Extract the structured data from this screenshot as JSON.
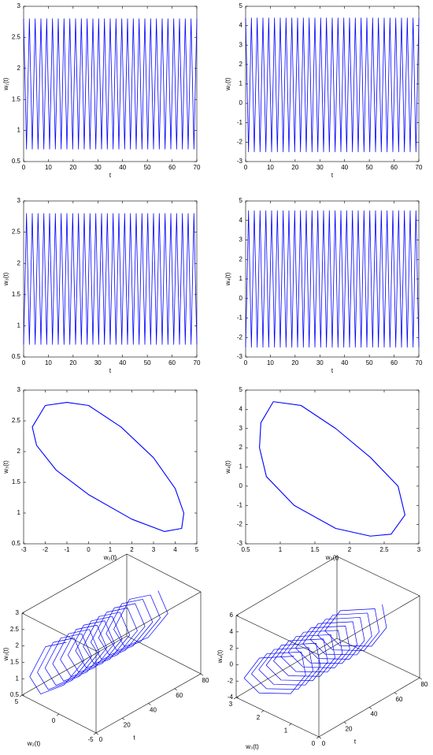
{
  "chart_data": [
    {
      "type": "line",
      "xlabel": "t",
      "ylabel": "w₁(t)",
      "color": "#0000ff",
      "xlim": [
        0,
        70
      ],
      "xticks": [
        0,
        10,
        20,
        30,
        40,
        50,
        60,
        70
      ],
      "ylim": [
        0.5,
        3
      ],
      "yticks": [
        0.5,
        1,
        1.5,
        2,
        2.5,
        3
      ],
      "x": [
        0,
        1.17,
        2.33,
        3.5,
        4.67,
        5.83,
        7,
        8.17,
        9.33,
        10.5,
        11.67,
        12.83,
        14,
        15.17,
        16.33,
        17.5,
        18.67,
        19.83,
        21,
        22.17,
        23.33,
        24.5,
        25.67,
        26.83,
        28,
        29.17,
        30.33,
        31.5,
        32.67,
        33.83,
        35,
        36.17,
        37.33,
        38.5,
        39.67,
        40.83,
        42,
        43.17,
        44.33,
        45.5,
        46.67,
        47.83,
        49,
        50.17,
        51.33,
        52.5,
        53.67,
        54.83,
        56,
        57.17,
        58.33,
        59.5,
        60.67,
        61.83,
        63,
        64.17,
        65.33,
        66.5,
        67.67,
        68.83,
        70
      ],
      "values": [
        2.8,
        0.7,
        2.8,
        0.7,
        2.8,
        0.7,
        2.8,
        0.7,
        2.8,
        0.7,
        2.8,
        0.7,
        2.8,
        0.7,
        2.8,
        0.7,
        2.8,
        0.7,
        2.8,
        0.7,
        2.8,
        0.7,
        2.8,
        0.7,
        2.8,
        0.7,
        2.8,
        0.7,
        2.8,
        0.7,
        2.8,
        0.7,
        2.8,
        0.7,
        2.8,
        0.7,
        2.8,
        0.7,
        2.8,
        0.7,
        2.8,
        0.7,
        2.8,
        0.7,
        2.8,
        0.7,
        2.8,
        0.7,
        2.8,
        0.7,
        2.8,
        0.7,
        2.8,
        0.7,
        2.8,
        0.7,
        2.8,
        0.7,
        2.8,
        0.7,
        2.8
      ]
    },
    {
      "type": "line",
      "xlabel": "t",
      "ylabel": "w₂(t)",
      "color": "#0000ff",
      "xlim": [
        0,
        70
      ],
      "xticks": [
        0,
        10,
        20,
        30,
        40,
        50,
        60,
        70
      ],
      "ylim": [
        -3,
        5
      ],
      "yticks": [
        -3,
        -2,
        -1,
        0,
        1,
        2,
        3,
        4,
        5
      ],
      "x": [
        0,
        1.17,
        2.33,
        3.5,
        4.67,
        5.83,
        7,
        8.17,
        9.33,
        10.5,
        11.67,
        12.83,
        14,
        15.17,
        16.33,
        17.5,
        18.67,
        19.83,
        21,
        22.17,
        23.33,
        24.5,
        25.67,
        26.83,
        28,
        29.17,
        30.33,
        31.5,
        32.67,
        33.83,
        35,
        36.17,
        37.33,
        38.5,
        39.67,
        40.83,
        42,
        43.17,
        44.33,
        45.5,
        46.67,
        47.83,
        49,
        50.17,
        51.33,
        52.5,
        53.67,
        54.83,
        56,
        57.17,
        58.33,
        59.5,
        60.67,
        61.83,
        63,
        64.17,
        65.33,
        66.5,
        67.67,
        68.83,
        70
      ],
      "values": [
        4.4,
        -2.5,
        4.4,
        -2.5,
        4.4,
        -2.5,
        4.4,
        -2.5,
        4.4,
        -2.5,
        4.4,
        -2.5,
        4.4,
        -2.5,
        4.4,
        -2.5,
        4.4,
        -2.5,
        4.4,
        -2.5,
        4.4,
        -2.5,
        4.4,
        -2.5,
        4.4,
        -2.5,
        4.4,
        -2.5,
        4.4,
        -2.5,
        4.4,
        -2.5,
        4.4,
        -2.5,
        4.4,
        -2.5,
        4.4,
        -2.5,
        4.4,
        -2.5,
        4.4,
        -2.5,
        4.4,
        -2.5,
        4.4,
        -2.5,
        4.4,
        -2.5,
        4.4,
        -2.5,
        4.4,
        -2.5,
        4.4,
        -2.5,
        4.4,
        -2.5,
        4.4,
        -2.5,
        4.4,
        -2.5,
        4.4
      ]
    },
    {
      "type": "line",
      "xlabel": "t",
      "ylabel": "w₃(t)",
      "color": "#0000ff",
      "xlim": [
        0,
        70
      ],
      "xticks": [
        0,
        10,
        20,
        30,
        40,
        50,
        60,
        70
      ],
      "ylim": [
        0.5,
        3
      ],
      "yticks": [
        0.5,
        1,
        1.5,
        2,
        2.5,
        3
      ],
      "x": [
        0,
        1.17,
        2.33,
        3.5,
        4.67,
        5.83,
        7,
        8.17,
        9.33,
        10.5,
        11.67,
        12.83,
        14,
        15.17,
        16.33,
        17.5,
        18.67,
        19.83,
        21,
        22.17,
        23.33,
        24.5,
        25.67,
        26.83,
        28,
        29.17,
        30.33,
        31.5,
        32.67,
        33.83,
        35,
        36.17,
        37.33,
        38.5,
        39.67,
        40.83,
        42,
        43.17,
        44.33,
        45.5,
        46.67,
        47.83,
        49,
        50.17,
        51.33,
        52.5,
        53.67,
        54.83,
        56,
        57.17,
        58.33,
        59.5,
        60.67,
        61.83,
        63,
        64.17,
        65.33,
        66.5,
        67.67,
        68.83,
        70
      ],
      "values": [
        0.7,
        2.8,
        0.7,
        2.8,
        0.7,
        2.8,
        0.7,
        2.8,
        0.7,
        2.8,
        0.7,
        2.8,
        0.7,
        2.8,
        0.7,
        2.8,
        0.7,
        2.8,
        0.7,
        2.8,
        0.7,
        2.8,
        0.7,
        2.8,
        0.7,
        2.8,
        0.7,
        2.8,
        0.7,
        2.8,
        0.7,
        2.8,
        0.7,
        2.8,
        0.7,
        2.8,
        0.7,
        2.8,
        0.7,
        2.8,
        0.7,
        2.8,
        0.7,
        2.8,
        0.7,
        2.8,
        0.7,
        2.8,
        0.7,
        2.8,
        0.7,
        2.8,
        0.7,
        2.8,
        0.7,
        2.8,
        0.7,
        2.8,
        0.7,
        2.8,
        0.7
      ]
    },
    {
      "type": "line",
      "xlabel": "t",
      "ylabel": "w₄(t)",
      "color": "#0000ff",
      "xlim": [
        0,
        70
      ],
      "xticks": [
        0,
        10,
        20,
        30,
        40,
        50,
        60,
        70
      ],
      "ylim": [
        -3,
        5
      ],
      "yticks": [
        -3,
        -2,
        -1,
        0,
        1,
        2,
        3,
        4,
        5
      ],
      "x": [
        0,
        1.17,
        2.33,
        3.5,
        4.67,
        5.83,
        7,
        8.17,
        9.33,
        10.5,
        11.67,
        12.83,
        14,
        15.17,
        16.33,
        17.5,
        18.67,
        19.83,
        21,
        22.17,
        23.33,
        24.5,
        25.67,
        26.83,
        28,
        29.17,
        30.33,
        31.5,
        32.67,
        33.83,
        35,
        36.17,
        37.33,
        38.5,
        39.67,
        40.83,
        42,
        43.17,
        44.33,
        45.5,
        46.67,
        47.83,
        49,
        50.17,
        51.33,
        52.5,
        53.67,
        54.83,
        56,
        57.17,
        58.33,
        59.5,
        60.67,
        61.83,
        63,
        64.17,
        65.33,
        66.5,
        67.67,
        68.83,
        70
      ],
      "values": [
        -2.5,
        4.5,
        -2.5,
        4.5,
        -2.5,
        4.5,
        -2.5,
        4.5,
        -2.5,
        4.5,
        -2.5,
        4.5,
        -2.5,
        4.5,
        -2.5,
        4.5,
        -2.5,
        4.5,
        -2.5,
        4.5,
        -2.5,
        4.5,
        -2.5,
        4.5,
        -2.5,
        4.5,
        -2.5,
        4.5,
        -2.5,
        4.5,
        -2.5,
        4.5,
        -2.5,
        4.5,
        -2.5,
        4.5,
        -2.5,
        4.5,
        -2.5,
        4.5,
        -2.5,
        4.5,
        -2.5,
        4.5,
        -2.5,
        4.5,
        -2.5,
        4.5,
        -2.5,
        4.5,
        -2.5,
        4.5,
        -2.5,
        4.5,
        -2.5,
        4.5,
        -2.5,
        4.5,
        -2.5,
        4.5,
        -2.5
      ]
    },
    {
      "type": "line",
      "xlabel": "w₂(t)",
      "ylabel": "w₃(t)",
      "color": "#0000ff",
      "xlim": [
        -3,
        5
      ],
      "xticks": [
        -3,
        -2,
        -1,
        0,
        1,
        2,
        3,
        4,
        5
      ],
      "ylim": [
        0.5,
        3
      ],
      "yticks": [
        0.5,
        1,
        1.5,
        2,
        2.5,
        3
      ],
      "x": [
        -1,
        0,
        1.5,
        3,
        4,
        4.4,
        4.3,
        3.5,
        2,
        0,
        -1.5,
        -2.4,
        -2.6,
        -2,
        -1
      ],
      "values": [
        2.8,
        2.75,
        2.4,
        1.9,
        1.4,
        1,
        0.75,
        0.7,
        0.9,
        1.3,
        1.7,
        2.1,
        2.4,
        2.75,
        2.8
      ]
    },
    {
      "type": "line",
      "xlabel": "w₃(t)",
      "ylabel": "w₄(t)",
      "color": "#0000ff",
      "xlim": [
        0.5,
        3
      ],
      "xticks": [
        0.5,
        1,
        1.5,
        2,
        2.5,
        3
      ],
      "ylim": [
        -3,
        5
      ],
      "yticks": [
        -3,
        -2,
        -1,
        0,
        1,
        2,
        3,
        4,
        5
      ],
      "x": [
        0.9,
        1.3,
        1.8,
        2.3,
        2.7,
        2.8,
        2.6,
        2.3,
        1.8,
        1.2,
        0.8,
        0.7,
        0.72,
        0.9
      ],
      "values": [
        4.4,
        4.2,
        3,
        1.5,
        0,
        -1.5,
        -2.5,
        -2.6,
        -2.2,
        -1,
        0.5,
        2,
        3.3,
        4.4
      ]
    },
    {
      "type": "line3d",
      "xlabel": "t",
      "ylabel": "w₂(t)",
      "zlabel": "w₃(t)",
      "color": "#0000ff",
      "xlim": [
        0,
        80
      ],
      "xticks": [
        0,
        20,
        40,
        60,
        80
      ],
      "ylim": [
        -5,
        5
      ],
      "yticks": [
        -5,
        0,
        5
      ],
      "zlim": [
        0.5,
        3
      ],
      "zticks": [
        0.5,
        1,
        1.5,
        2,
        2.5,
        3
      ],
      "x": [
        0,
        0.97,
        1.94,
        2.92,
        3.89,
        4.86,
        5.83,
        6.81,
        7.78,
        8.75,
        9.72,
        10.69,
        11.67,
        12.64,
        13.61,
        14.58,
        15.56,
        16.53,
        17.5,
        18.47,
        19.44,
        20.42,
        21.39,
        22.36,
        23.33,
        24.31,
        25.28,
        26.25,
        27.22,
        28.19,
        29.17,
        30.14,
        31.11,
        32.08,
        33.06,
        34.03,
        35,
        35.97,
        36.94,
        37.92,
        38.89,
        39.86,
        40.83,
        41.81,
        42.78,
        43.75,
        44.72,
        45.69,
        46.67,
        47.64,
        48.61,
        49.58,
        50.56,
        51.53,
        52.5,
        53.47,
        54.44,
        55.42,
        56.39,
        57.36,
        58.33,
        59.31,
        60.28,
        61.25,
        62.22,
        63.19,
        64.17,
        65.14,
        66.11,
        67.08,
        68.06,
        69.03,
        70
      ],
      "y": [
        -1,
        2,
        4.3,
        3,
        0,
        -2.5,
        -1,
        2,
        4.3,
        3,
        0,
        -2.5,
        -1,
        2,
        4.3,
        3,
        0,
        -2.5,
        -1,
        2,
        4.3,
        3,
        0,
        -2.5,
        -1,
        2,
        4.3,
        3,
        0,
        -2.5,
        -1,
        2,
        4.3,
        3,
        0,
        -2.5,
        -1,
        2,
        4.3,
        3,
        0,
        -2.5,
        -1,
        2,
        4.3,
        3,
        0,
        -2.5,
        -1,
        2,
        4.3,
        3,
        0,
        -2.5,
        -1,
        2,
        4.3,
        3,
        0,
        -2.5,
        -1,
        2,
        4.3,
        3,
        0,
        -2.5,
        -1,
        2,
        4.3,
        3,
        0,
        -2.5,
        -1
      ],
      "z": [
        2.8,
        2.3,
        1.1,
        0.7,
        1.3,
        2.3,
        2.8,
        2.3,
        1.1,
        0.7,
        1.3,
        2.3,
        2.8,
        2.3,
        1.1,
        0.7,
        1.3,
        2.3,
        2.8,
        2.3,
        1.1,
        0.7,
        1.3,
        2.3,
        2.8,
        2.3,
        1.1,
        0.7,
        1.3,
        2.3,
        2.8,
        2.3,
        1.1,
        0.7,
        1.3,
        2.3,
        2.8,
        2.3,
        1.1,
        0.7,
        1.3,
        2.3,
        2.8,
        2.3,
        1.1,
        0.7,
        1.3,
        2.3,
        2.8,
        2.3,
        1.1,
        0.7,
        1.3,
        2.3,
        2.8,
        2.3,
        1.1,
        0.7,
        1.3,
        2.3,
        2.8,
        2.3,
        1.1,
        0.7,
        1.3,
        2.3,
        2.8,
        2.3,
        1.1,
        0.7,
        1.3,
        2.3,
        2.8
      ]
    },
    {
      "type": "line3d",
      "xlabel": "t",
      "ylabel": "w₃(t)",
      "zlabel": "w₄(t)",
      "color": "#0000ff",
      "xlim": [
        0,
        80
      ],
      "xticks": [
        0,
        20,
        40,
        60,
        80
      ],
      "ylim": [
        0,
        3
      ],
      "yticks": [
        0,
        1,
        2,
        3
      ],
      "zlim": [
        -4,
        6
      ],
      "zticks": [
        -4,
        -2,
        0,
        2,
        4,
        6
      ],
      "x": [
        0,
        0.97,
        1.94,
        2.92,
        3.89,
        4.86,
        5.83,
        6.81,
        7.78,
        8.75,
        9.72,
        10.69,
        11.67,
        12.64,
        13.61,
        14.58,
        15.56,
        16.53,
        17.5,
        18.47,
        19.44,
        20.42,
        21.39,
        22.36,
        23.33,
        24.31,
        25.28,
        26.25,
        27.22,
        28.19,
        29.17,
        30.14,
        31.11,
        32.08,
        33.06,
        34.03,
        35,
        35.97,
        36.94,
        37.92,
        38.89,
        39.86,
        40.83,
        41.81,
        42.78,
        43.75,
        44.72,
        45.69,
        46.67,
        47.64,
        48.61,
        49.58,
        50.56,
        51.53,
        52.5,
        53.47,
        54.44,
        55.42,
        56.39,
        57.36,
        58.33,
        59.31,
        60.28,
        61.25,
        62.22,
        63.19,
        64.17,
        65.14,
        66.11,
        67.08,
        68.06,
        69.03,
        70
      ],
      "y": [
        0.9,
        2.2,
        2.8,
        2.3,
        1.2,
        0.7,
        0.9,
        2.2,
        2.8,
        2.3,
        1.2,
        0.7,
        0.9,
        2.2,
        2.8,
        2.3,
        1.2,
        0.7,
        0.9,
        2.2,
        2.8,
        2.3,
        1.2,
        0.7,
        0.9,
        2.2,
        2.8,
        2.3,
        1.2,
        0.7,
        0.9,
        2.2,
        2.8,
        2.3,
        1.2,
        0.7,
        0.9,
        2.2,
        2.8,
        2.3,
        1.2,
        0.7,
        0.9,
        2.2,
        2.8,
        2.3,
        1.2,
        0.7,
        0.9,
        2.2,
        2.8,
        2.3,
        1.2,
        0.7,
        0.9,
        2.2,
        2.8,
        2.3,
        1.2,
        0.7,
        0.9,
        2.2,
        2.8,
        2.3,
        1.2,
        0.7,
        0.9,
        2.2,
        2.8,
        2.3,
        1.2,
        0.7,
        0.9
      ],
      "z": [
        4.4,
        2,
        -1.5,
        -2.6,
        -1,
        2,
        4.4,
        2,
        -1.5,
        -2.6,
        -1,
        2,
        4.4,
        2,
        -1.5,
        -2.6,
        -1,
        2,
        4.4,
        2,
        -1.5,
        -2.6,
        -1,
        2,
        4.4,
        2,
        -1.5,
        -2.6,
        -1,
        2,
        4.4,
        2,
        -1.5,
        -2.6,
        -1,
        2,
        4.4,
        2,
        -1.5,
        -2.6,
        -1,
        2,
        4.4,
        2,
        -1.5,
        -2.6,
        -1,
        2,
        4.4,
        2,
        -1.5,
        -2.6,
        -1,
        2,
        4.4,
        2,
        -1.5,
        -2.6,
        -1,
        2,
        4.4,
        2,
        -1.5,
        -2.6,
        -1,
        2,
        4.4,
        2,
        -1.5,
        -2.6,
        -1,
        2,
        4.4
      ]
    }
  ]
}
